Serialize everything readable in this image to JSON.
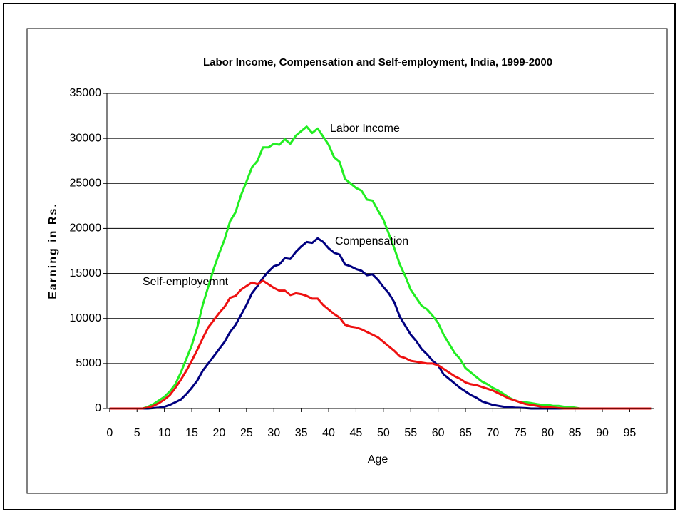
{
  "chart_data": {
    "type": "line",
    "title": "Labor Income, Compensation and Self-employment, India, 1999-2000",
    "x_label": "Age",
    "y_label": "Earning in Rs.",
    "x": [
      0,
      1,
      2,
      3,
      4,
      5,
      6,
      7,
      8,
      9,
      10,
      11,
      12,
      13,
      14,
      15,
      16,
      17,
      18,
      19,
      20,
      21,
      22,
      23,
      24,
      25,
      26,
      27,
      28,
      29,
      30,
      31,
      32,
      33,
      34,
      35,
      36,
      37,
      38,
      39,
      40,
      41,
      42,
      43,
      44,
      45,
      46,
      47,
      48,
      49,
      50,
      51,
      52,
      53,
      54,
      55,
      56,
      57,
      58,
      59,
      60,
      61,
      62,
      63,
      64,
      65,
      66,
      67,
      68,
      69,
      70,
      71,
      72,
      73,
      74,
      75,
      76,
      77,
      78,
      79,
      80,
      81,
      82,
      83,
      84,
      85,
      86,
      87,
      88,
      89,
      90,
      91,
      92,
      93,
      94,
      95,
      96,
      97,
      98,
      99
    ],
    "xlim": [
      -0.5,
      99.5
    ],
    "xticks": [
      0,
      5,
      10,
      15,
      20,
      25,
      30,
      35,
      40,
      45,
      50,
      55,
      60,
      65,
      70,
      75,
      80,
      85,
      90,
      95
    ],
    "ylim": [
      0,
      35000
    ],
    "yticks": [
      0,
      5000,
      10000,
      15000,
      20000,
      25000,
      30000,
      35000
    ],
    "grid": true,
    "series": [
      {
        "name": "Labor Income",
        "color": "#22ee22",
        "values": [
          0,
          0,
          0,
          0,
          0,
          0,
          0,
          200,
          500,
          900,
          1300,
          1900,
          2700,
          4000,
          5500,
          7000,
          9000,
          11500,
          13500,
          15500,
          17200,
          18800,
          20800,
          21800,
          23700,
          25200,
          26800,
          27500,
          29000,
          29000,
          29400,
          29300,
          29900,
          29400,
          30300,
          30800,
          31300,
          30600,
          31100,
          30200,
          29300,
          27900,
          27400,
          25500,
          25000,
          24500,
          24200,
          23200,
          23100,
          22000,
          21000,
          19400,
          17800,
          16000,
          14700,
          13200,
          12300,
          11400,
          11000,
          10300,
          9500,
          8200,
          7200,
          6200,
          5500,
          4500,
          4000,
          3500,
          3000,
          2700,
          2300,
          2000,
          1600,
          1200,
          900,
          700,
          700,
          600,
          500,
          400,
          400,
          300,
          300,
          200,
          200,
          100,
          0,
          0,
          0,
          0,
          0,
          0,
          0,
          0,
          0,
          0,
          0,
          0,
          0,
          0
        ]
      },
      {
        "name": "Compensation",
        "color": "#000080",
        "values": [
          0,
          0,
          0,
          0,
          0,
          0,
          0,
          0,
          50,
          100,
          200,
          400,
          700,
          1000,
          1600,
          2300,
          3100,
          4200,
          5000,
          5800,
          6600,
          7400,
          8500,
          9300,
          10400,
          11500,
          12800,
          13600,
          14500,
          15200,
          15800,
          16000,
          16700,
          16600,
          17400,
          18000,
          18500,
          18400,
          18900,
          18500,
          17800,
          17300,
          17100,
          16000,
          15800,
          15500,
          15300,
          14800,
          14900,
          14300,
          13500,
          12800,
          11800,
          10200,
          9200,
          8200,
          7500,
          6600,
          6000,
          5300,
          4800,
          3800,
          3300,
          2800,
          2300,
          1900,
          1500,
          1200,
          800,
          600,
          400,
          300,
          200,
          150,
          100,
          80,
          50,
          0,
          0,
          0,
          0,
          0,
          0,
          0,
          0,
          0,
          0,
          0,
          0,
          0,
          0,
          0,
          0,
          0,
          0,
          0,
          0,
          0,
          0,
          0
        ]
      },
      {
        "name": "Self-employemnt",
        "color": "#ee1111",
        "values": [
          0,
          0,
          0,
          0,
          0,
          0,
          0,
          100,
          300,
          600,
          1000,
          1500,
          2300,
          3200,
          4200,
          5300,
          6500,
          7800,
          9000,
          9800,
          10600,
          11300,
          12300,
          12500,
          13200,
          13600,
          14000,
          13800,
          14200,
          13800,
          13400,
          13100,
          13100,
          12600,
          12800,
          12700,
          12500,
          12200,
          12200,
          11500,
          11000,
          10500,
          10100,
          9300,
          9100,
          9000,
          8800,
          8500,
          8200,
          7900,
          7400,
          6900,
          6400,
          5800,
          5600,
          5300,
          5200,
          5100,
          5000,
          5000,
          4800,
          4400,
          4000,
          3600,
          3300,
          2900,
          2700,
          2600,
          2400,
          2200,
          2000,
          1700,
          1400,
          1100,
          900,
          700,
          500,
          400,
          300,
          200,
          150,
          100,
          50,
          0,
          0,
          0,
          0,
          0,
          0,
          0,
          0,
          0,
          0,
          0,
          0,
          0,
          0,
          0,
          0,
          0
        ]
      }
    ]
  }
}
